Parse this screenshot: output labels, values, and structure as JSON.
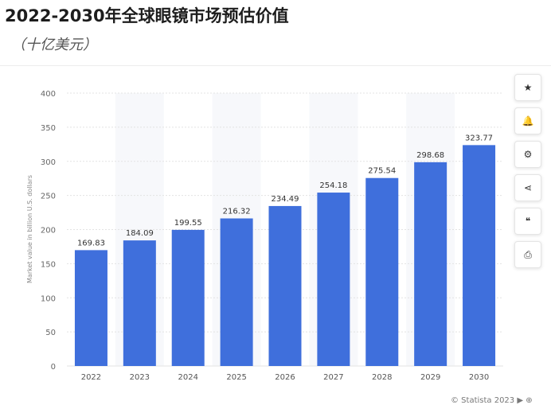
{
  "page": {
    "title": "2022-2030年全球眼镜市场预估价值",
    "subtitle": "（十亿美元）",
    "credit": "© Statista 2023 ▶ ⊕"
  },
  "toolbar": {
    "items": [
      {
        "name": "star-icon",
        "glyph": "★"
      },
      {
        "name": "bell-icon",
        "glyph": "🔔"
      },
      {
        "name": "gear-icon",
        "glyph": "⚙"
      },
      {
        "name": "share-icon",
        "glyph": "⋖"
      },
      {
        "name": "quote-icon",
        "glyph": "❝"
      },
      {
        "name": "print-icon",
        "glyph": "⎙"
      }
    ]
  },
  "chart_data": {
    "type": "bar",
    "categories": [
      "2022",
      "2023",
      "2024",
      "2025",
      "2026",
      "2027",
      "2028",
      "2029",
      "2030"
    ],
    "values": [
      169.83,
      184.09,
      199.55,
      216.32,
      234.49,
      254.18,
      275.54,
      298.68,
      323.77
    ],
    "data_labels": [
      "169.83",
      "184.09",
      "199.55",
      "216.32",
      "234.49",
      "254.18",
      "275.54",
      "298.68",
      "323.77"
    ],
    "ylabel": "Market value in billion U.S. dollars",
    "xlabel": "",
    "ylim": [
      0,
      400
    ],
    "yticks": [
      0,
      50,
      100,
      150,
      200,
      250,
      300,
      350,
      400
    ],
    "grid": true,
    "bar_color": "#3f6fdc"
  }
}
